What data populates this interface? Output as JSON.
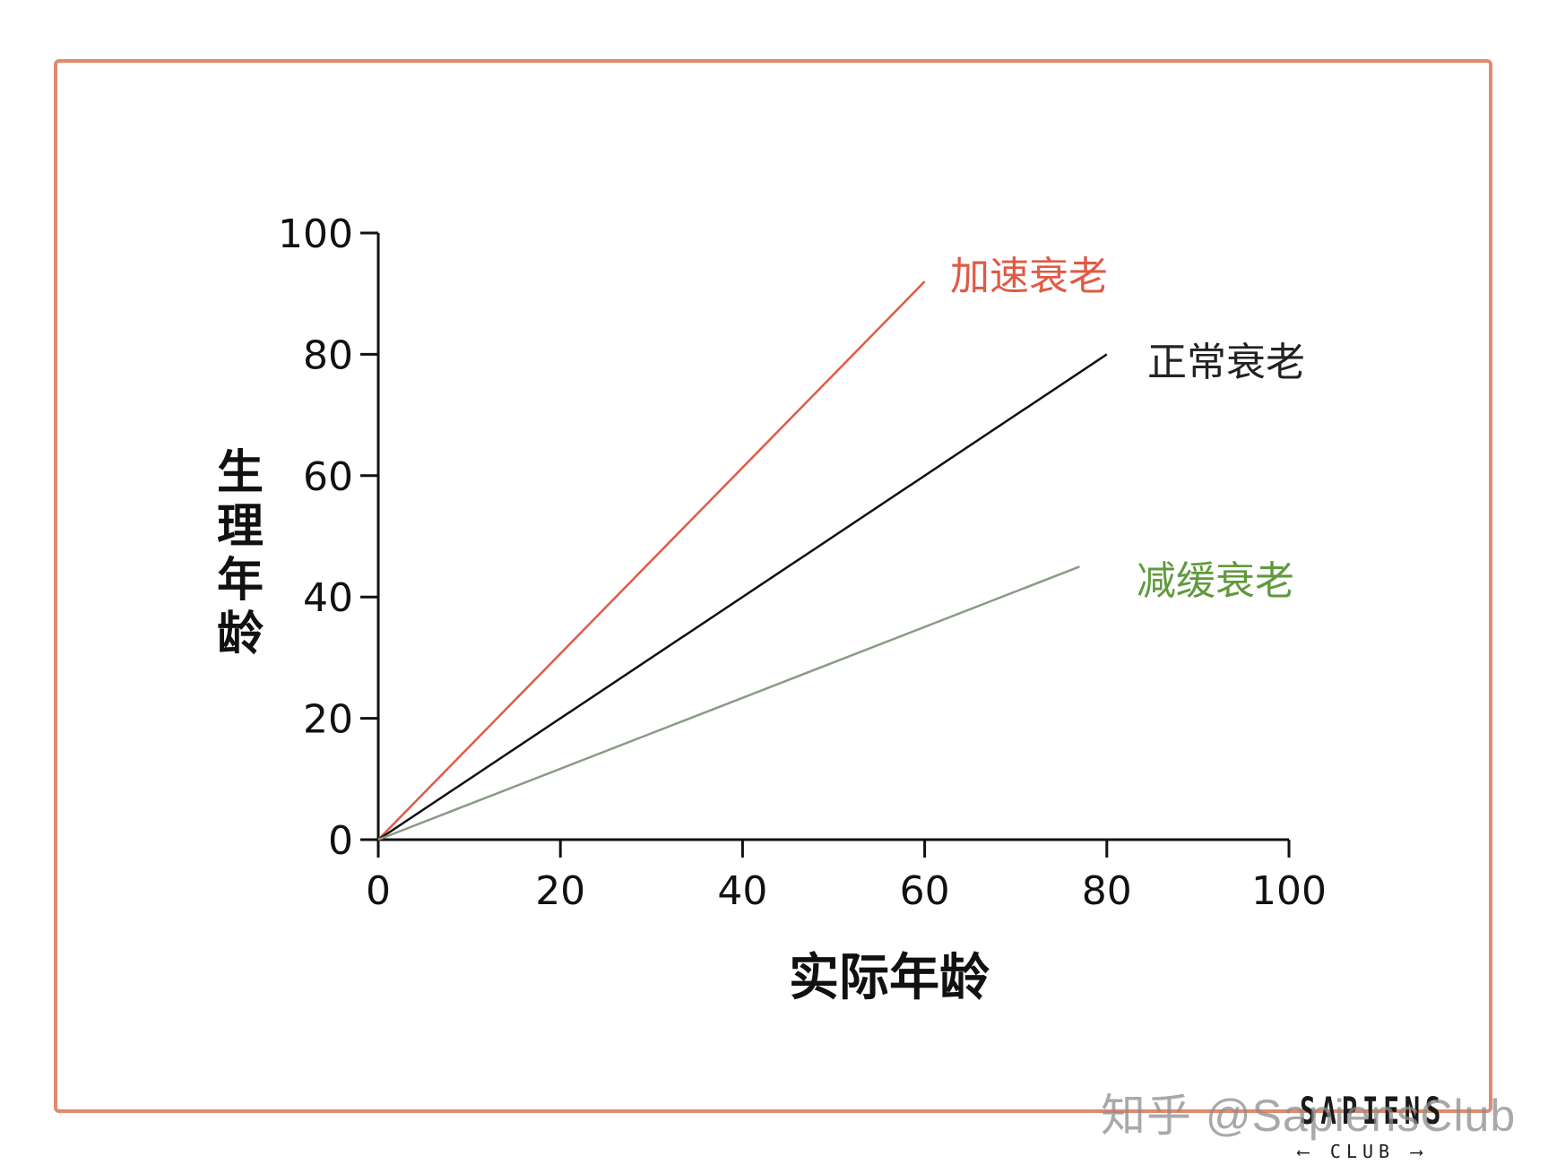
{
  "chart_data": {
    "type": "line",
    "title": "",
    "xlabel": "实际年龄",
    "ylabel": "生理年龄",
    "xlim": [
      0,
      100
    ],
    "ylim": [
      0,
      100
    ],
    "xticks": [
      0,
      20,
      40,
      60,
      80,
      100
    ],
    "yticks": [
      0,
      20,
      40,
      60,
      80,
      100
    ],
    "grid": false,
    "legend": "inline labels at line ends",
    "series": [
      {
        "name": "加速衰老",
        "color": "#e05a45",
        "x": [
          0,
          60
        ],
        "y": [
          0,
          92
        ]
      },
      {
        "name": "正常衰老",
        "color": "#111111",
        "x": [
          0,
          80
        ],
        "y": [
          0,
          80
        ]
      },
      {
        "name": "减缓衰老",
        "color": "#8a9a86",
        "label_color": "#5f9a3c",
        "x": [
          0,
          77
        ],
        "y": [
          0,
          45
        ]
      }
    ]
  },
  "labels": {
    "xlabel": "实际年龄",
    "ylabel": "生理年龄",
    "xticks": [
      "0",
      "20",
      "40",
      "60",
      "80",
      "100"
    ],
    "yticks": [
      "0",
      "20",
      "40",
      "60",
      "80",
      "100"
    ],
    "series": [
      "加速衰老",
      "正常衰老",
      "减缓衰老"
    ]
  },
  "watermark": "知乎 @SapiensClub",
  "logo": {
    "main": "SAPIENS",
    "sub": "⟵ CLUB ⟶"
  },
  "colors": {
    "frame": "#e08a6e",
    "accelerated": "#e05a45",
    "normal": "#111111",
    "slowed_line": "#8a9a86",
    "slowed_label": "#5f9a3c"
  }
}
